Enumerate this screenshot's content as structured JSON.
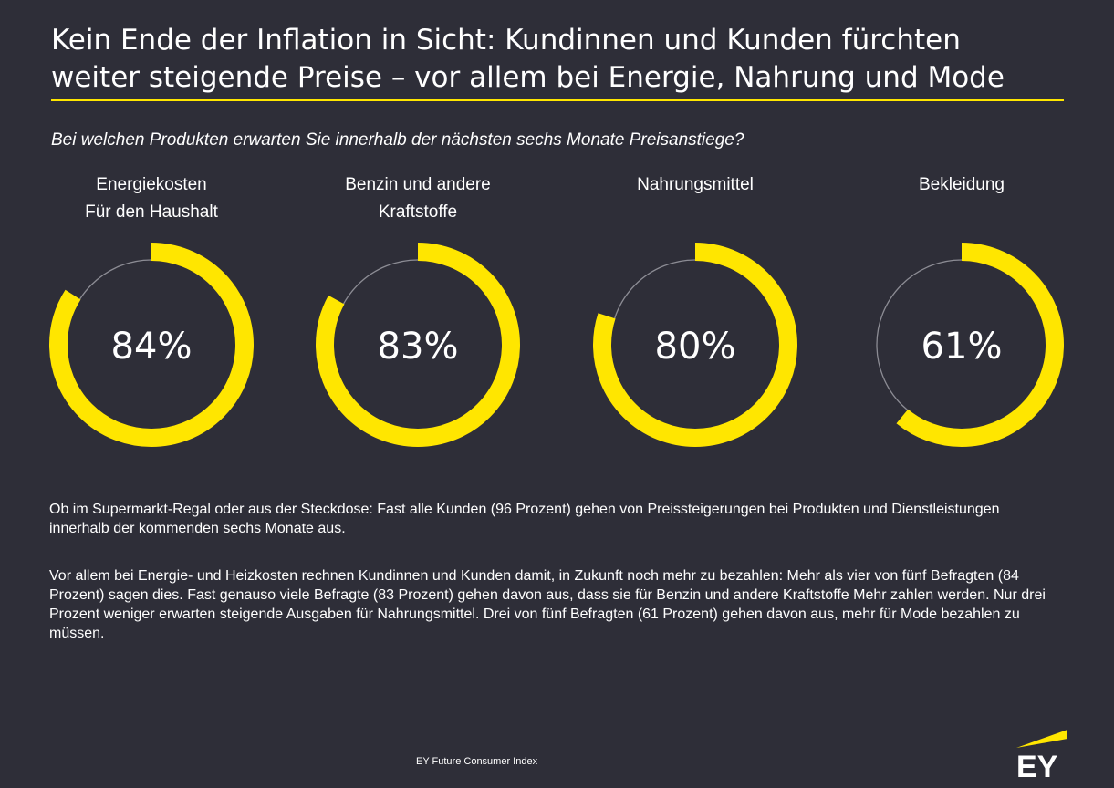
{
  "title_line1": "Kein Ende der Inflation in Sicht: Kundinnen und Kunden fürchten",
  "title_line2": "weiter steigende Preise – vor allem bei Energie, Nahrung und Mode",
  "question": "Bei welchen Produkten erwarten Sie innerhalb der nächsten sechs Monate Preisanstiege?",
  "chart_data": {
    "type": "donut",
    "title": "",
    "categories": [
      [
        "Energiekosten",
        "Für den Haushalt"
      ],
      [
        "Benzin und andere",
        "Kraftstoffe"
      ],
      [
        "Nahrungsmittel"
      ],
      [
        "Bekleidung"
      ]
    ],
    "values": [
      84,
      83,
      80,
      61
    ],
    "labels": [
      "84%",
      "83%",
      "80%",
      "61%"
    ],
    "max": 100
  },
  "paragraph1": "Ob im Supermarkt-Regal oder aus der Steckdose: Fast alle Kunden (96 Prozent) gehen von Preissteigerungen bei Produkten und Dienstleistungen innerhalb der kommenden sechs Monate aus.",
  "paragraph2": "Vor allem bei Energie- und Heizkosten rechnen Kundinnen und Kunden damit, in Zukunft noch mehr zu bezahlen: Mehr als vier von fünf Befragten (84 Prozent) sagen dies. Fast genauso viele Befragte (83 Prozent) gehen davon aus, dass sie für Benzin und andere Kraftstoffe Mehr zahlen werden. Nur drei Prozent weniger erwarten steigende Ausgaben für Nahrungsmittel. Drei von fünf Befragten (61 Prozent) gehen davon aus, mehr für Mode bezahlen zu müssen.",
  "source": "EY Future Consumer Index",
  "logo_text": "EY",
  "colors": {
    "background": "#2e2e38",
    "accent": "#ffe600",
    "track": "#8c8c94"
  }
}
